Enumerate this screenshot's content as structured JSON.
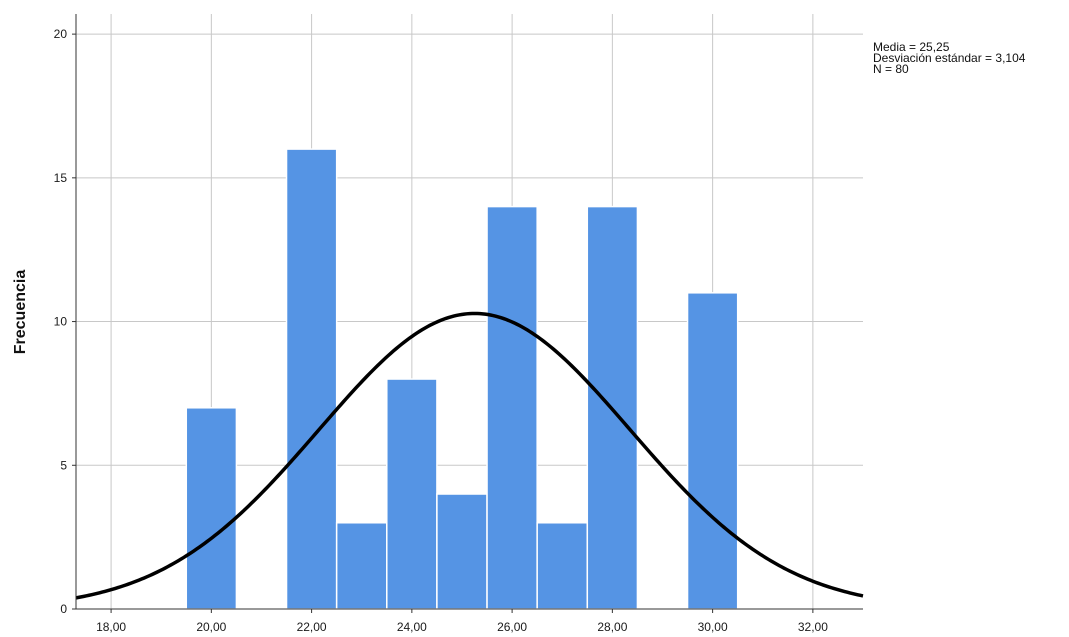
{
  "chart_data": {
    "type": "bar",
    "title": "",
    "xlabel": "",
    "ylabel": "Frecuencia",
    "bins": [
      {
        "x": 20,
        "value": 7
      },
      {
        "x": 22,
        "value": 16
      },
      {
        "x": 23,
        "value": 3
      },
      {
        "x": 24,
        "value": 8
      },
      {
        "x": 25,
        "value": 4
      },
      {
        "x": 26,
        "value": 14
      },
      {
        "x": 27,
        "value": 3
      },
      {
        "x": 28,
        "value": 14
      },
      {
        "x": 30,
        "value": 11
      }
    ],
    "bin_width": 1,
    "xlim": [
      17.3,
      33.0
    ],
    "ylim": [
      0,
      20.7
    ],
    "x_ticks": [
      "18,00",
      "20,00",
      "22,00",
      "24,00",
      "26,00",
      "28,00",
      "30,00",
      "32,00"
    ],
    "y_ticks": [
      "0",
      "5",
      "10",
      "15",
      "20"
    ],
    "grid": true,
    "bar_color": "#5594e4",
    "curve": {
      "type": "normal",
      "mean": 25.25,
      "sd": 3.104,
      "n": 80,
      "color": "#000000"
    },
    "stats": {
      "media": "Media = 25,25",
      "desviacion": "Desviación estándar = 3,104",
      "n": "N = 80"
    }
  }
}
